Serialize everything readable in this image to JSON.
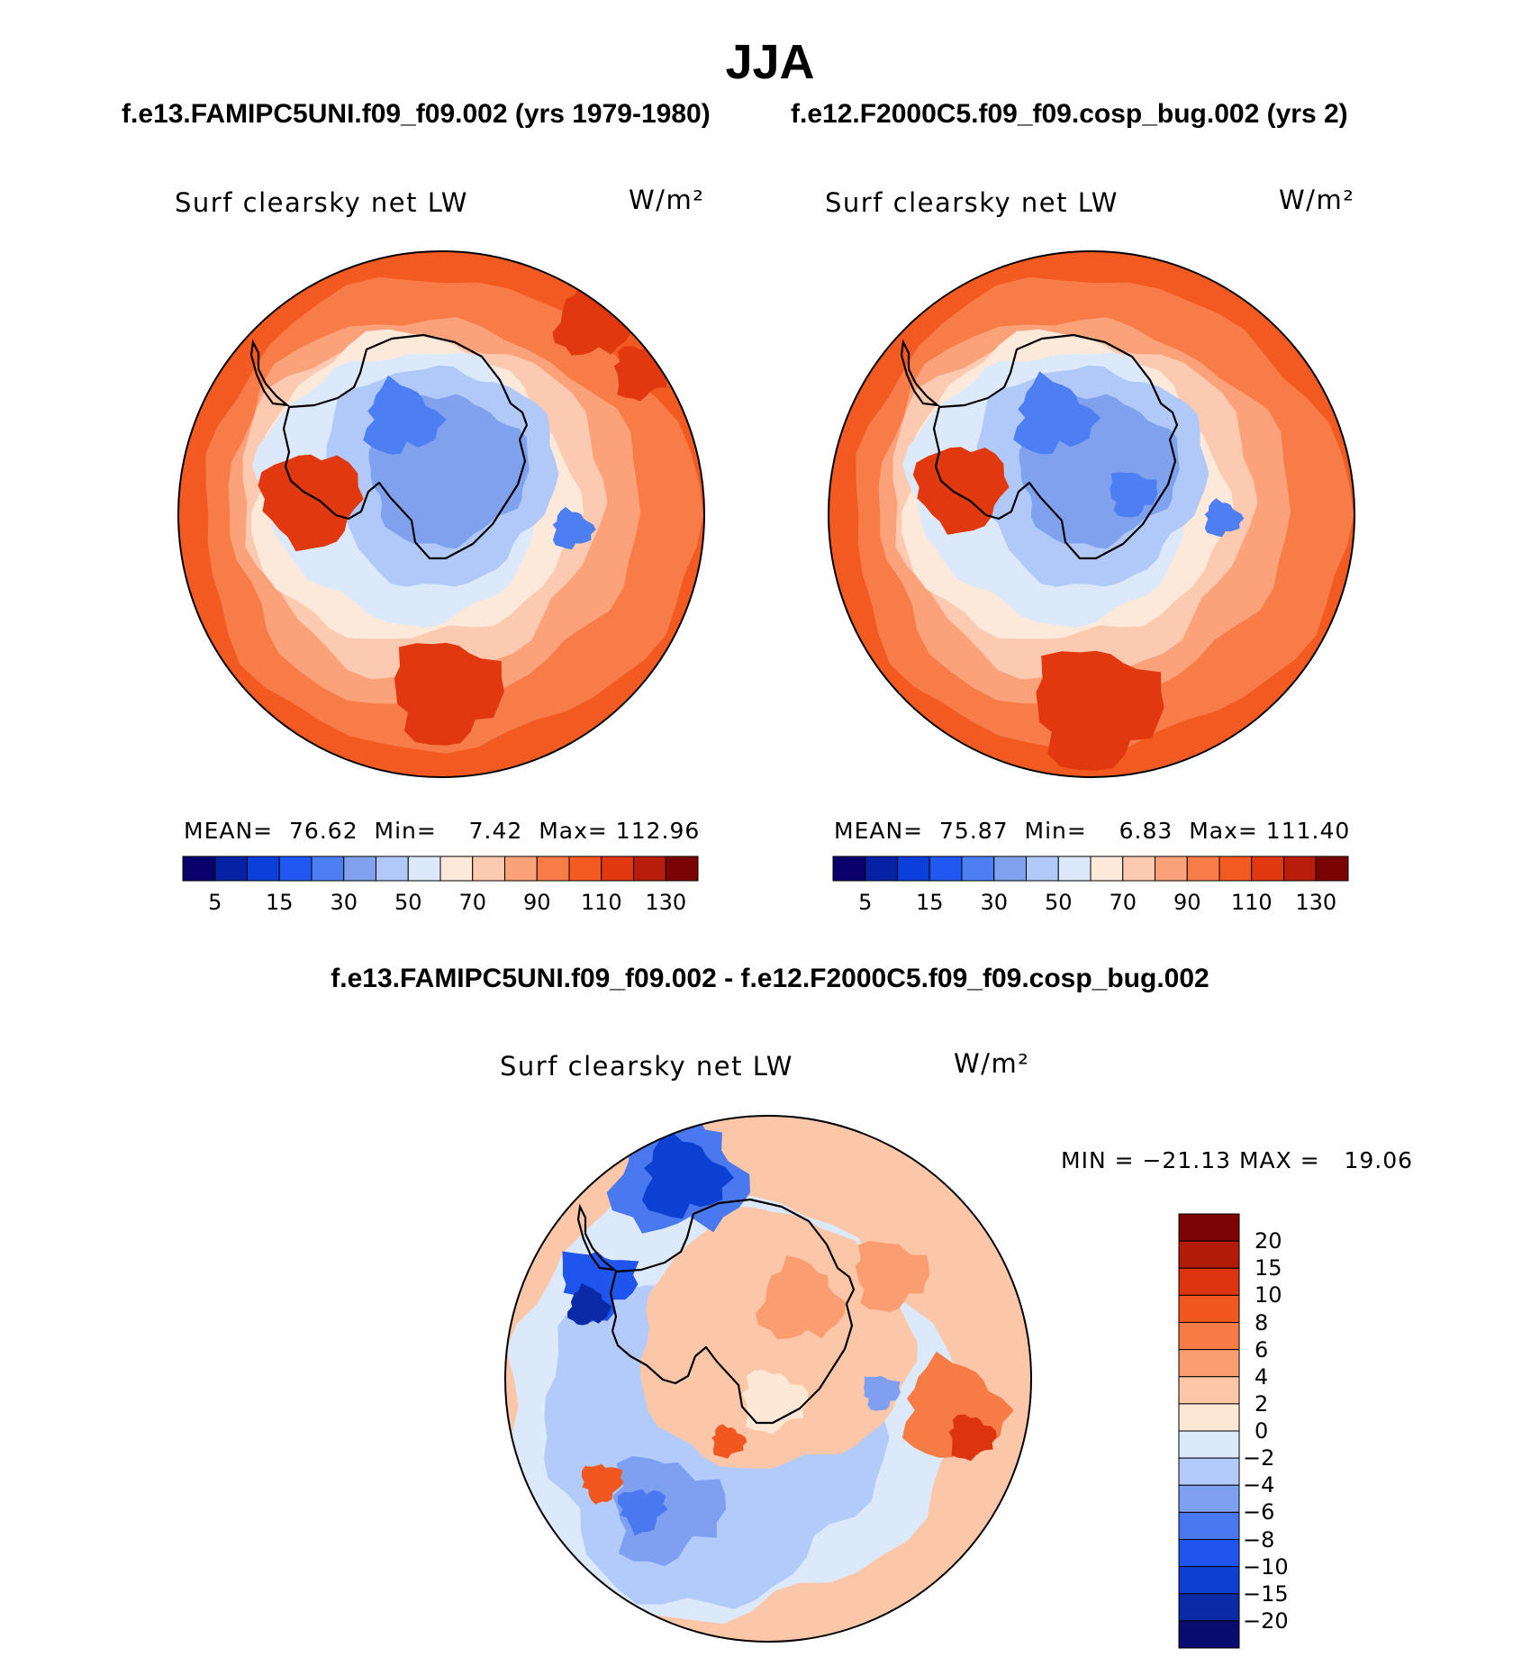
{
  "figure": {
    "title": "JJA",
    "subtitle_left": "f.e13.FAMIPC5UNI.f09_f09.002 (yrs 1979-1980)",
    "subtitle_right": "f.e12.F2000C5.f09_f09.cosp_bug.002 (yrs 2)",
    "diff_title": "f.e13.FAMIPC5UNI.f09_f09.002 - f.e12.F2000C5.f09_f09.cosp_bug.002"
  },
  "chart_data": [
    {
      "type": "heatmap",
      "projection": "south-polar-stereographic",
      "title": "Surf clearsky net LW",
      "units": "W/m²",
      "case": "f.e13.FAMIPC5UNI.f09_f09.002 (yrs 1979-1980)",
      "stats": {
        "mean_label": "MEAN=",
        "mean": "76.62",
        "min_label": "Min=",
        "min": "7.42",
        "max_label": "Max=",
        "max": "112.96"
      },
      "contour_levels": [
        5,
        10,
        15,
        20,
        30,
        40,
        50,
        60,
        70,
        80,
        90,
        100,
        110,
        120,
        130
      ],
      "colorbar_tick_labels": [
        "5",
        "15",
        "30",
        "50",
        "70",
        "90",
        "110",
        "130"
      ],
      "colors": [
        "#08006b",
        "#0522a5",
        "#0b3fd9",
        "#2158ef",
        "#4d7ff2",
        "#7fa1ee",
        "#b0c9f9",
        "#dce9fb",
        "#fde9d9",
        "#fccab0",
        "#fba27a",
        "#f77c48",
        "#f35a22",
        "#e23810",
        "#b81c0a",
        "#7a0404"
      ]
    },
    {
      "type": "heatmap",
      "projection": "south-polar-stereographic",
      "title": "Surf clearsky net LW",
      "units": "W/m²",
      "case": "f.e12.F2000C5.f09_f09.cosp_bug.002 (yrs 2)",
      "stats": {
        "mean_label": "MEAN=",
        "mean": "75.87",
        "min_label": "Min=",
        "min": "6.83",
        "max_label": "Max=",
        "max": "111.40"
      },
      "contour_levels": [
        5,
        10,
        15,
        20,
        30,
        40,
        50,
        60,
        70,
        80,
        90,
        100,
        110,
        120,
        130
      ],
      "colorbar_tick_labels": [
        "5",
        "15",
        "30",
        "50",
        "70",
        "90",
        "110",
        "130"
      ],
      "colors": [
        "#08006b",
        "#0522a5",
        "#0b3fd9",
        "#2158ef",
        "#4d7ff2",
        "#7fa1ee",
        "#b0c9f9",
        "#dce9fb",
        "#fde9d9",
        "#fccab0",
        "#fba27a",
        "#f77c48",
        "#f35a22",
        "#e23810",
        "#b81c0a",
        "#7a0404"
      ]
    },
    {
      "type": "heatmap",
      "projection": "south-polar-stereographic",
      "title": "Surf clearsky net LW",
      "units": "W/m²",
      "case": "difference",
      "stats_label": "MIN = −21.13 MAX =   19.06",
      "stats": {
        "min": "-21.13",
        "max": "19.06"
      },
      "contour_levels": [
        -20,
        -15,
        -10,
        -8,
        -6,
        -4,
        -2,
        0,
        2,
        4,
        6,
        8,
        10,
        15,
        20
      ],
      "colorbar_tick_labels": [
        "20",
        "15",
        "10",
        "8",
        "6",
        "4",
        "2",
        "0",
        "−2",
        "−4",
        "−6",
        "−8",
        "−10",
        "−15",
        "−20"
      ],
      "colors": [
        "#080c6e",
        "#0a2aa8",
        "#0d40d2",
        "#1f55ec",
        "#4a78ef",
        "#7f9ff1",
        "#b3cbfa",
        "#dbe9fb",
        "#fde8d6",
        "#fbc7a8",
        "#fa9e72",
        "#f77b45",
        "#f25720",
        "#dd3410",
        "#b11b08",
        "#7c0404"
      ]
    }
  ]
}
